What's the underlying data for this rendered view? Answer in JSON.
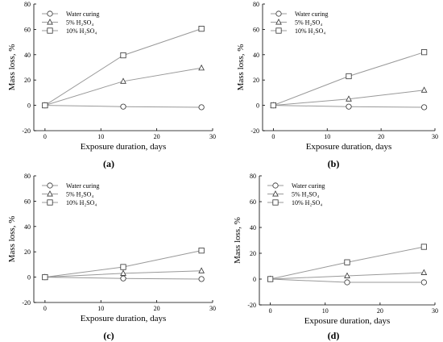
{
  "chart_data": [
    {
      "type": "line",
      "panel_label": "(a)",
      "xlabel": "Exposure duration, days",
      "ylabel": "Mass loss, %",
      "xlim": [
        -2,
        30
      ],
      "ylim": [
        -20,
        80
      ],
      "x_ticks": [
        0,
        10,
        20,
        30
      ],
      "y_ticks": [
        -20,
        0,
        20,
        40,
        60,
        80
      ],
      "grid": false,
      "legend_position": "top-left",
      "x": [
        0,
        14,
        28
      ],
      "series": [
        {
          "name": "Water curing",
          "marker": "circle",
          "values": [
            0,
            -1,
            -1.5
          ]
        },
        {
          "name": "5% H₂SO₄",
          "marker": "triangle",
          "values": [
            0,
            19,
            29.5
          ]
        },
        {
          "name": "10% H₂SO₄",
          "marker": "square",
          "values": [
            0,
            39.5,
            60.5
          ]
        }
      ]
    },
    {
      "type": "line",
      "panel_label": "(b)",
      "xlabel": "Exposure duration, days",
      "ylabel": "Mass loss, %",
      "xlim": [
        -2,
        30
      ],
      "ylim": [
        -20,
        80
      ],
      "x_ticks": [
        0,
        10,
        20,
        30
      ],
      "y_ticks": [
        -20,
        0,
        20,
        40,
        60,
        80
      ],
      "grid": false,
      "legend_position": "top-left",
      "x": [
        0,
        14,
        28
      ],
      "series": [
        {
          "name": "Water curing",
          "marker": "circle",
          "values": [
            0,
            -1,
            -1.5
          ]
        },
        {
          "name": "5% H₂SO₄",
          "marker": "triangle",
          "values": [
            0,
            5,
            12
          ]
        },
        {
          "name": "10% H₂SO₄",
          "marker": "square",
          "values": [
            0,
            23,
            42
          ]
        }
      ]
    },
    {
      "type": "line",
      "panel_label": "(c)",
      "xlabel": "Exposure duration, days",
      "ylabel": "Mass loss, %",
      "xlim": [
        -2,
        30
      ],
      "ylim": [
        -20,
        80
      ],
      "x_ticks": [
        0,
        10,
        20,
        30
      ],
      "y_ticks": [
        -20,
        0,
        20,
        40,
        60,
        80
      ],
      "grid": false,
      "legend_position": "top-left",
      "x": [
        0,
        14,
        28
      ],
      "series": [
        {
          "name": "Water curing",
          "marker": "circle",
          "values": [
            0,
            -1,
            -1.5
          ]
        },
        {
          "name": "5% H₂SO₄",
          "marker": "triangle",
          "values": [
            0,
            3,
            5
          ]
        },
        {
          "name": "10% H₂SO₄",
          "marker": "square",
          "values": [
            0,
            8,
            21
          ]
        }
      ]
    },
    {
      "type": "line",
      "panel_label": "(d)",
      "xlabel": "Exposure duration, days",
      "ylabel": "Mass loss, %",
      "xlim": [
        -2,
        30
      ],
      "ylim": [
        -20,
        80
      ],
      "x_ticks": [
        0,
        10,
        20,
        30
      ],
      "y_ticks": [
        -20,
        0,
        20,
        40,
        60,
        80
      ],
      "grid": false,
      "legend_position": "top-left",
      "x": [
        0,
        14,
        28
      ],
      "series": [
        {
          "name": "Water curing",
          "marker": "circle",
          "values": [
            0,
            -2.5,
            -2.5
          ]
        },
        {
          "name": "5% H₂SO₄",
          "marker": "triangle",
          "values": [
            0,
            2.5,
            5
          ]
        },
        {
          "name": "10% H₂SO₄",
          "marker": "square",
          "values": [
            0,
            13,
            25
          ]
        }
      ]
    }
  ],
  "colors": {
    "line": "#999999",
    "marker_stroke": "#333333",
    "axis": "#000000"
  }
}
